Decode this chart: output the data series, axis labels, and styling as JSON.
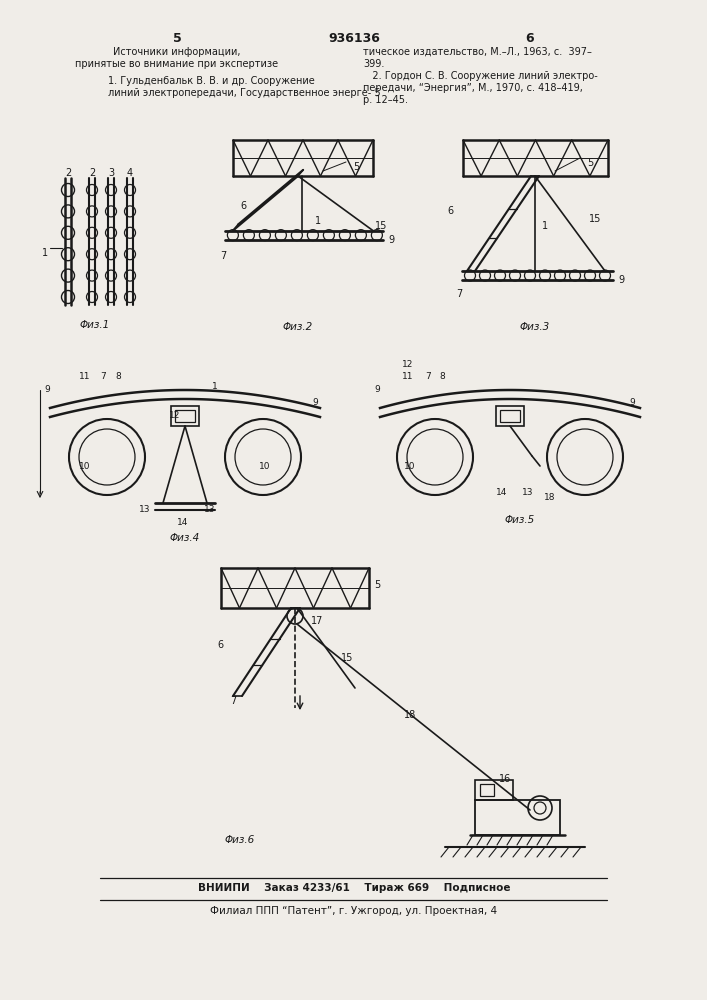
{
  "page_width": 7.07,
  "page_height": 10.0,
  "bg_color": "#f0ede8",
  "header_num_left": "5",
  "header_num_center": "936136",
  "header_num_right": "6",
  "col1_line1": "Источники информации,",
  "col1_line2": "принятые во внимание при экспертизе",
  "col1_line3": "1. Гульденбальк В. В. и др. Сооружение",
  "col1_line4": "линий электропередачи, Государственное энерге- 5",
  "col2_line1": "тическое издательство, М.–Л., 1963, с.  397–",
  "col2_line2": "399.",
  "col2_line3": "   2. Гордон С. В. Сооружение линий электро-",
  "col2_line4": "передачи, “Энергия”, М., 1970, с. 418–419,",
  "col2_line5": "р. 12–45.",
  "footer1": "ВНИИПИ    Заказ 4233/61    Тираж 669    Подписное",
  "footer2": "Филиал ППП “Патент”, г. Ужгород, ул. Проектная, 4",
  "fig1_label": "Φиз.1",
  "fig2_label": "Φиз.2",
  "fig3_label": "Φиз.3",
  "fig4_label": "Φиз.4",
  "fig5_label": "Φиз.5",
  "fig6_label": "Φиз.6"
}
